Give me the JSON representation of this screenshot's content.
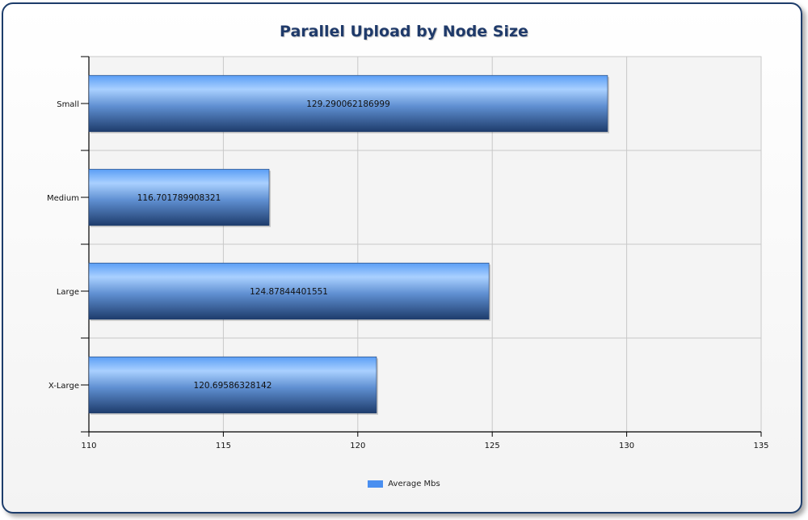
{
  "chart_data": {
    "type": "bar",
    "orientation": "horizontal",
    "title": "Parallel Upload by Node Size",
    "categories": [
      "Small",
      "Medium",
      "Large",
      "X-Large"
    ],
    "series": [
      {
        "name": "Average Mbs",
        "values": [
          129.290062186999,
          116.701789908321,
          124.87844401551,
          120.69586328142
        ],
        "labels": [
          "129.290062186999",
          "116.701789908321",
          "124.87844401551",
          "120.69586328142"
        ]
      }
    ],
    "xlim": [
      110,
      135
    ],
    "xticks": [
      "110",
      "115",
      "120",
      "125",
      "130",
      "135"
    ],
    "grid": true,
    "legend": "bottom-center",
    "colors": {
      "bar_top": "#8ec3ff",
      "bar_bottom": "#1e3c6c",
      "legend_swatch": "#4a8ff0"
    }
  }
}
